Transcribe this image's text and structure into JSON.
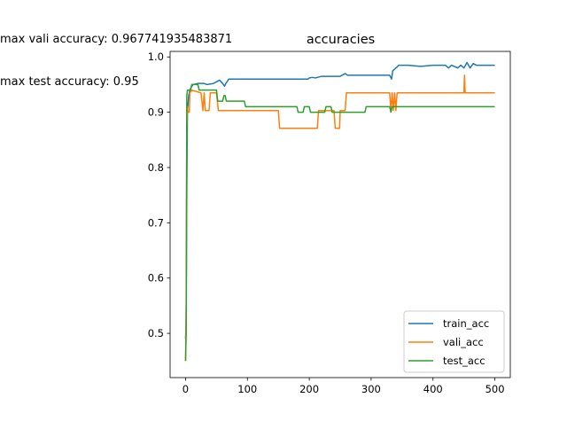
{
  "annotations": {
    "max_vali": "max vali  accuracy: 0.967741935483871",
    "max_test": "max test  accuracy: 0.95"
  },
  "chart_data": {
    "type": "line",
    "title": "accuracies",
    "xlabel": "",
    "ylabel": "",
    "xlim": [
      -25,
      525
    ],
    "ylim": [
      0.42,
      1.01
    ],
    "x_ticks": [
      0,
      100,
      200,
      300,
      400,
      500
    ],
    "y_ticks": [
      0.5,
      0.6,
      0.7,
      0.8,
      0.9,
      1.0
    ],
    "y_tick_labels": [
      "0.5",
      "0.6",
      "0.7",
      "0.8",
      "0.9",
      "1.0"
    ],
    "grid": false,
    "legend_position": "lower right",
    "series": [
      {
        "name": "train_acc",
        "color": "#1f77b4",
        "points": [
          [
            0,
            0.49
          ],
          [
            1,
            0.52
          ],
          [
            2,
            0.75
          ],
          [
            3,
            0.9
          ],
          [
            5,
            0.93
          ],
          [
            7,
            0.94
          ],
          [
            9,
            0.945
          ],
          [
            12,
            0.95
          ],
          [
            20,
            0.952
          ],
          [
            30,
            0.952
          ],
          [
            35,
            0.95
          ],
          [
            45,
            0.952
          ],
          [
            50,
            0.955
          ],
          [
            55,
            0.958
          ],
          [
            60,
            0.952
          ],
          [
            63,
            0.947
          ],
          [
            65,
            0.952
          ],
          [
            70,
            0.96
          ],
          [
            100,
            0.96
          ],
          [
            150,
            0.96
          ],
          [
            198,
            0.96
          ],
          [
            200,
            0.962
          ],
          [
            205,
            0.963
          ],
          [
            210,
            0.962
          ],
          [
            220,
            0.965
          ],
          [
            250,
            0.965
          ],
          [
            258,
            0.97
          ],
          [
            262,
            0.967
          ],
          [
            300,
            0.967
          ],
          [
            330,
            0.967
          ],
          [
            333,
            0.96
          ],
          [
            335,
            0.975
          ],
          [
            340,
            0.98
          ],
          [
            345,
            0.985
          ],
          [
            360,
            0.985
          ],
          [
            380,
            0.983
          ],
          [
            400,
            0.985
          ],
          [
            420,
            0.985
          ],
          [
            425,
            0.98
          ],
          [
            430,
            0.985
          ],
          [
            440,
            0.98
          ],
          [
            445,
            0.985
          ],
          [
            450,
            0.98
          ],
          [
            455,
            0.99
          ],
          [
            460,
            0.98
          ],
          [
            465,
            0.988
          ],
          [
            470,
            0.985
          ],
          [
            500,
            0.985
          ]
        ]
      },
      {
        "name": "vali_acc",
        "color": "#ff7f0e",
        "points": [
          [
            0,
            0.45
          ],
          [
            1,
            0.55
          ],
          [
            2,
            0.87
          ],
          [
            3,
            0.91
          ],
          [
            4,
            0.9
          ],
          [
            6,
            0.9
          ],
          [
            7,
            0.935
          ],
          [
            10,
            0.94
          ],
          [
            25,
            0.935
          ],
          [
            28,
            0.903
          ],
          [
            30,
            0.935
          ],
          [
            32,
            0.903
          ],
          [
            38,
            0.903
          ],
          [
            40,
            0.935
          ],
          [
            50,
            0.935
          ],
          [
            53,
            0.903
          ],
          [
            150,
            0.903
          ],
          [
            152,
            0.871
          ],
          [
            213,
            0.871
          ],
          [
            215,
            0.903
          ],
          [
            240,
            0.903
          ],
          [
            242,
            0.871
          ],
          [
            249,
            0.871
          ],
          [
            250,
            0.903
          ],
          [
            258,
            0.903
          ],
          [
            260,
            0.935
          ],
          [
            330,
            0.935
          ],
          [
            332,
            0.903
          ],
          [
            334,
            0.935
          ],
          [
            336,
            0.903
          ],
          [
            338,
            0.935
          ],
          [
            340,
            0.903
          ],
          [
            342,
            0.935
          ],
          [
            345,
            0.935
          ],
          [
            450,
            0.935
          ],
          [
            451,
            0.967
          ],
          [
            452,
            0.935
          ],
          [
            500,
            0.935
          ]
        ]
      },
      {
        "name": "test_acc",
        "color": "#2ca02c",
        "points": [
          [
            0,
            0.45
          ],
          [
            1,
            0.5
          ],
          [
            2,
            0.93
          ],
          [
            3,
            0.94
          ],
          [
            8,
            0.94
          ],
          [
            10,
            0.95
          ],
          [
            20,
            0.95
          ],
          [
            22,
            0.94
          ],
          [
            50,
            0.94
          ],
          [
            52,
            0.92
          ],
          [
            60,
            0.92
          ],
          [
            62,
            0.93
          ],
          [
            64,
            0.93
          ],
          [
            66,
            0.92
          ],
          [
            95,
            0.92
          ],
          [
            97,
            0.91
          ],
          [
            140,
            0.91
          ],
          [
            180,
            0.91
          ],
          [
            182,
            0.9
          ],
          [
            190,
            0.9
          ],
          [
            192,
            0.91
          ],
          [
            200,
            0.91
          ],
          [
            202,
            0.9
          ],
          [
            225,
            0.9
          ],
          [
            227,
            0.91
          ],
          [
            235,
            0.91
          ],
          [
            237,
            0.9
          ],
          [
            290,
            0.9
          ],
          [
            292,
            0.91
          ],
          [
            330,
            0.91
          ],
          [
            332,
            0.9
          ],
          [
            334,
            0.91
          ],
          [
            500,
            0.91
          ]
        ]
      }
    ]
  }
}
